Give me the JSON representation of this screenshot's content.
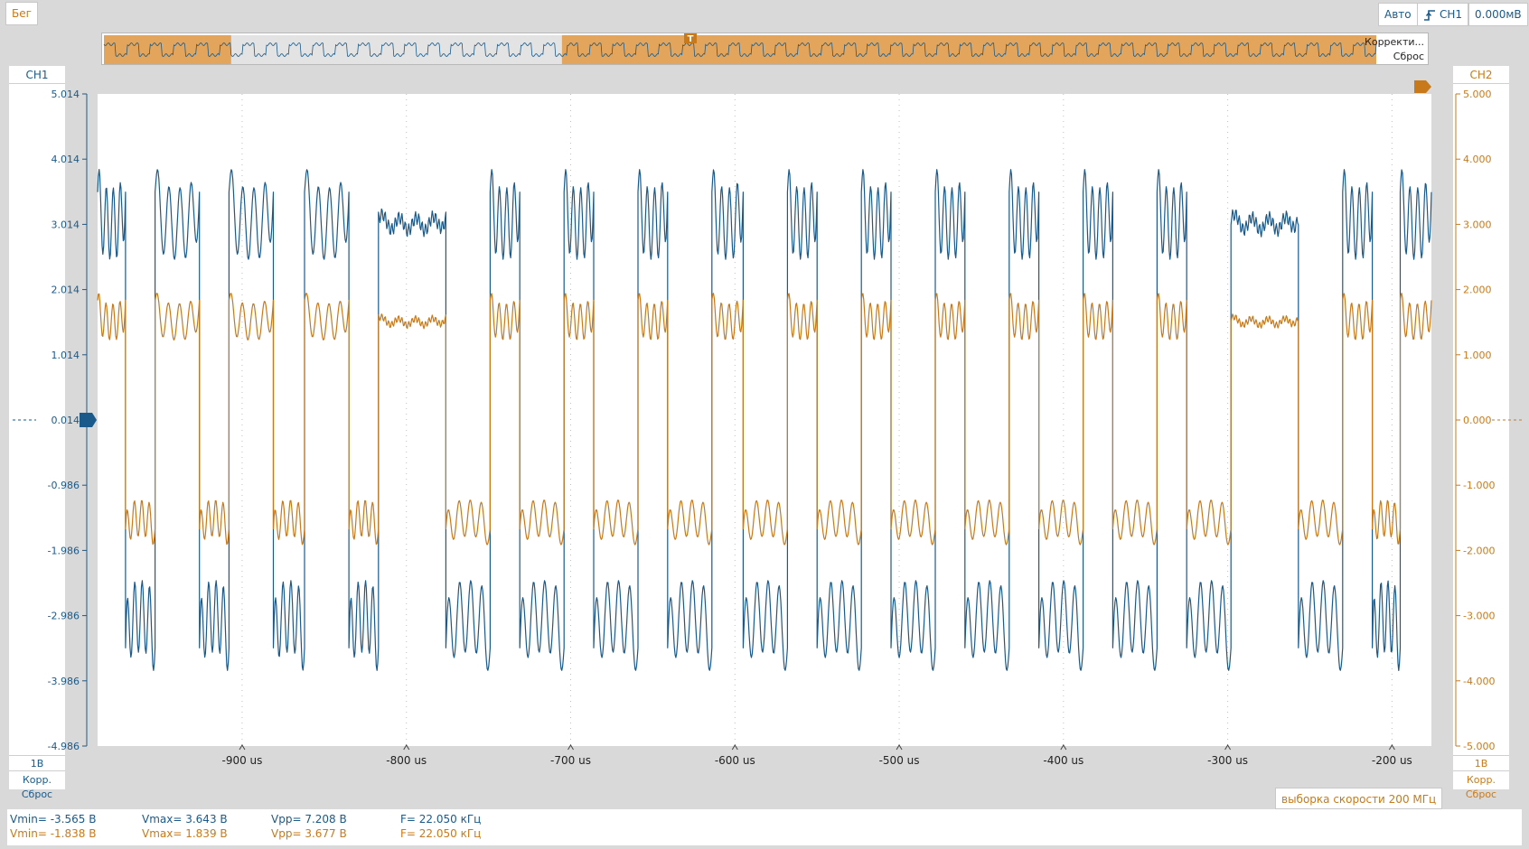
{
  "toolbar": {
    "run_status": "Бег",
    "trigger_mode": "Авто",
    "trigger_source": "CH1",
    "trigger_level": "0.000мВ"
  },
  "overview": {
    "label_correction": "Корректи...",
    "label_reset": "Сброс",
    "trigger_marker": "T",
    "window_start_fraction": 0.1,
    "window_end_fraction": 0.36
  },
  "ch1": {
    "title": "CH1",
    "scale": "1В",
    "link_corr": "Корр.",
    "link_reset": "Сброс",
    "color": "#1a5a8a"
  },
  "ch2": {
    "title": "CH2",
    "scale": "1В",
    "link_corr": "Корр.",
    "link_reset": "Сброс",
    "color": "#c87a1a"
  },
  "sample_rate": "выборка скорости 200 МГц",
  "measurements": {
    "ch1": {
      "vmin": "Vmin= -3.565 В",
      "vmax": "Vmax= 3.643 В",
      "vpp": "Vpp= 7.208 В",
      "freq": "F= 22.050 кГц"
    },
    "ch2": {
      "vmin": "Vmin= -1.838 В",
      "vmax": "Vmax= 1.839 В",
      "vpp": "Vpp= 3.677 В",
      "freq": "F= 22.050 кГц"
    }
  },
  "chart_data": {
    "type": "line",
    "x_unit": "us",
    "xlim": [
      -988,
      -176
    ],
    "x_ticks": [
      -900,
      -800,
      -700,
      -600,
      -500,
      -400,
      -300,
      -200
    ],
    "x_tick_labels": [
      "-900 us",
      "-800 us",
      "-700 us",
      "-600 us",
      "-500 us",
      "-400 us",
      "-300 us",
      "-200 us"
    ],
    "y_left_ticks": [
      "5.014",
      "4.014",
      "3.014",
      "2.014",
      "1.014",
      "0.014",
      "-0.986",
      "-1.986",
      "-2.986",
      "-3.986",
      "-4.986"
    ],
    "y_right_ticks": [
      "5.000",
      "4.000",
      "3.000",
      "2.000",
      "1.000",
      "0.000",
      "-1.000",
      "-2.000",
      "-3.000",
      "-4.000",
      "-5.000"
    ],
    "ylim": [
      -5,
      5
    ],
    "grid": "dotted vertical lines at x ticks",
    "series": [
      {
        "name": "CH1",
        "color": "#1a5a8a",
        "high_level": 3.0,
        "low_level": -3.0,
        "ripple_amplitude": 0.55,
        "vmin": -3.565,
        "vmax": 3.643
      },
      {
        "name": "CH2",
        "color": "#c87a1a",
        "high_level": 1.5,
        "low_level": -1.5,
        "ripple_amplitude": 0.28,
        "vmin": -1.838,
        "vmax": 1.839
      }
    ],
    "segments": [
      {
        "x_start": -988,
        "x_end": -971,
        "state": "high"
      },
      {
        "x_start": -971,
        "x_end": -953,
        "state": "low"
      },
      {
        "x_start": -953,
        "x_end": -926,
        "state": "high"
      },
      {
        "x_start": -926,
        "x_end": -908,
        "state": "low"
      },
      {
        "x_start": -908,
        "x_end": -881,
        "state": "high"
      },
      {
        "x_start": -881,
        "x_end": -862,
        "state": "low"
      },
      {
        "x_start": -862,
        "x_end": -835,
        "state": "high"
      },
      {
        "x_start": -835,
        "x_end": -817,
        "state": "low"
      },
      {
        "x_start": -817,
        "x_end": -776,
        "state": "high-flat"
      },
      {
        "x_start": -776,
        "x_end": -749,
        "state": "low"
      },
      {
        "x_start": -749,
        "x_end": -731,
        "state": "high"
      },
      {
        "x_start": -731,
        "x_end": -704,
        "state": "low"
      },
      {
        "x_start": -704,
        "x_end": -686,
        "state": "high"
      },
      {
        "x_start": -686,
        "x_end": -659,
        "state": "low"
      },
      {
        "x_start": -659,
        "x_end": -641,
        "state": "high"
      },
      {
        "x_start": -641,
        "x_end": -614,
        "state": "low"
      },
      {
        "x_start": -614,
        "x_end": -595,
        "state": "high"
      },
      {
        "x_start": -595,
        "x_end": -568,
        "state": "low"
      },
      {
        "x_start": -568,
        "x_end": -550,
        "state": "high"
      },
      {
        "x_start": -550,
        "x_end": -523,
        "state": "low"
      },
      {
        "x_start": -523,
        "x_end": -505,
        "state": "high"
      },
      {
        "x_start": -505,
        "x_end": -478,
        "state": "low"
      },
      {
        "x_start": -478,
        "x_end": -460,
        "state": "high"
      },
      {
        "x_start": -460,
        "x_end": -433,
        "state": "low"
      },
      {
        "x_start": -433,
        "x_end": -415,
        "state": "high"
      },
      {
        "x_start": -415,
        "x_end": -388,
        "state": "low"
      },
      {
        "x_start": -388,
        "x_end": -370,
        "state": "high"
      },
      {
        "x_start": -370,
        "x_end": -343,
        "state": "low"
      },
      {
        "x_start": -343,
        "x_end": -325,
        "state": "high"
      },
      {
        "x_start": -325,
        "x_end": -298,
        "state": "low"
      },
      {
        "x_start": -298,
        "x_end": -257,
        "state": "high-flat"
      },
      {
        "x_start": -257,
        "x_end": -230,
        "state": "low"
      },
      {
        "x_start": -230,
        "x_end": -212,
        "state": "high"
      },
      {
        "x_start": -212,
        "x_end": -195,
        "state": "low"
      },
      {
        "x_start": -195,
        "x_end": -176,
        "state": "high"
      }
    ]
  }
}
